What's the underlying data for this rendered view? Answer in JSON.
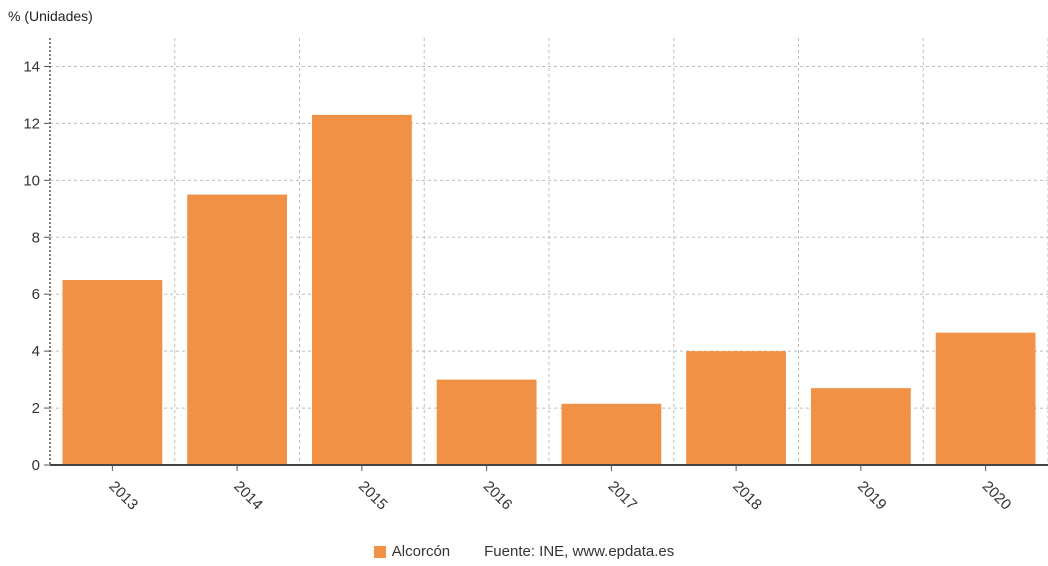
{
  "chart_data": {
    "type": "bar",
    "unit_label": "% (Unidades)",
    "categories": [
      "2013",
      "2014",
      "2015",
      "2016",
      "2017",
      "2018",
      "2019",
      "2020"
    ],
    "series": [
      {
        "name": "Alcorcón",
        "color": "#f19146",
        "values": [
          6.5,
          9.5,
          12.3,
          3.0,
          2.15,
          4.0,
          2.7,
          4.65
        ]
      }
    ],
    "ylim": [
      0,
      15
    ],
    "yticks": [
      0,
      2,
      4,
      6,
      8,
      10,
      12,
      14
    ],
    "grid": true,
    "legend_position": "bottom-center",
    "source": "Fuente: INE, www.epdata.es"
  }
}
